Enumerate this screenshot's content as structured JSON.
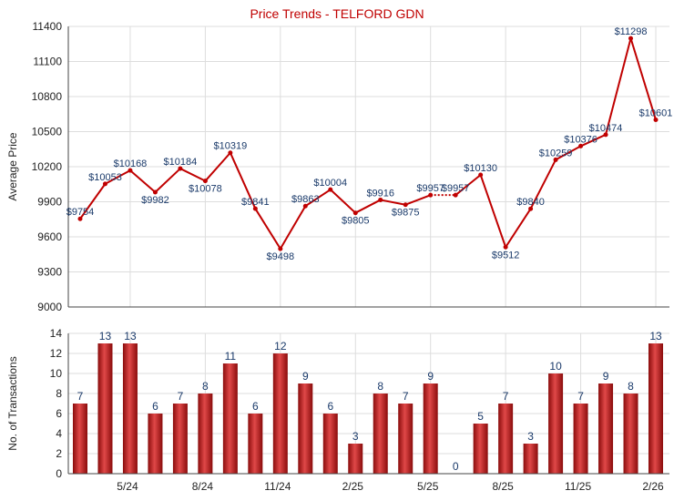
{
  "chart_data": [
    {
      "type": "line",
      "title": "Price Trends - TELFORD GDN",
      "ylabel": "Average Price",
      "ylim": [
        9000,
        11400
      ],
      "yticks": [
        9000,
        9300,
        9600,
        9900,
        10200,
        10500,
        10800,
        11100,
        11400
      ],
      "values": [
        9754,
        10053,
        10168,
        9982,
        10184,
        10078,
        10319,
        9841,
        9498,
        9863,
        10004,
        9805,
        9916,
        9875,
        9957,
        9957,
        10130,
        9512,
        9840,
        10259,
        10376,
        10474,
        11298,
        10601
      ],
      "labels": [
        "$9754",
        "$10053",
        "$10168",
        "$9982",
        "$10184",
        "$10078",
        "$10319",
        "$9841",
        "$9498",
        "$9863",
        "$10004",
        "$9805",
        "$9916",
        "$9875",
        "$9957",
        "$9957",
        "$10130",
        "$9512",
        "$9840",
        "$10259",
        "$10376",
        "$10474",
        "$11298",
        "$10601"
      ],
      "carried_index": 15,
      "color": "#c00000"
    },
    {
      "type": "bar",
      "ylabel": "No. of Transactions",
      "ylim": [
        0,
        14
      ],
      "yticks": [
        0,
        2,
        4,
        6,
        8,
        10,
        12,
        14
      ],
      "values": [
        7,
        13,
        13,
        6,
        7,
        8,
        11,
        6,
        12,
        9,
        6,
        3,
        8,
        7,
        9,
        0,
        5,
        7,
        3,
        10,
        7,
        9,
        8,
        13
      ],
      "xticks": [
        {
          "index": 2,
          "label": "5/24"
        },
        {
          "index": 5,
          "label": "8/24"
        },
        {
          "index": 8,
          "label": "11/24"
        },
        {
          "index": 11,
          "label": "2/25"
        },
        {
          "index": 14,
          "label": "5/25"
        },
        {
          "index": 17,
          "label": "8/25"
        },
        {
          "index": 20,
          "label": "11/25"
        },
        {
          "index": 23,
          "label": "2/26"
        }
      ],
      "color": "#b81c1c"
    }
  ]
}
